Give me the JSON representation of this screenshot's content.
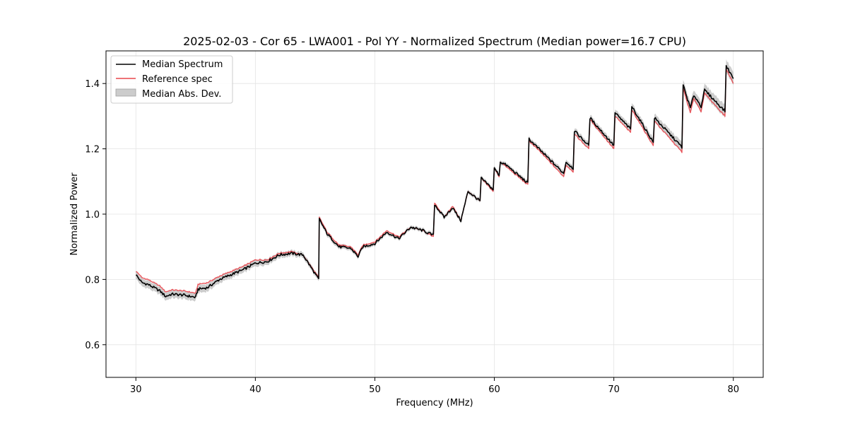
{
  "chart_data": {
    "type": "line",
    "title": "2025-02-03 - Cor 65 - LWA001 - Pol YY - Normalized Spectrum (Median power=16.7 CPU)",
    "xlabel": "Frequency (MHz)",
    "ylabel": "Normalized Power",
    "xlim": [
      27.5,
      82.5
    ],
    "ylim": [
      0.5,
      1.5
    ],
    "xticks": [
      30,
      40,
      50,
      60,
      70,
      80
    ],
    "yticks": [
      0.6,
      0.8,
      1.0,
      1.2,
      1.4
    ],
    "xtick_labels": [
      "30",
      "40",
      "50",
      "60",
      "70",
      "80"
    ],
    "ytick_labels": [
      "0.6",
      "0.8",
      "1.0",
      "1.2",
      "1.4"
    ],
    "grid": true,
    "legend_position": "top-left",
    "colors": {
      "median": "#000000",
      "reference": "#e8464c",
      "mad": "#b0b0b0"
    },
    "series": [
      {
        "name": "Median Spectrum",
        "x": [
          30.0,
          30.3,
          30.5,
          31.0,
          31.5,
          32.0,
          32.5,
          33.0,
          34.0,
          35.0,
          35.2,
          36.0,
          37.0,
          38.0,
          39.0,
          40.0,
          41.0,
          42.0,
          43.0,
          44.0,
          45.3,
          45.35,
          46.0,
          47.0,
          48.0,
          48.6,
          49.0,
          50.0,
          51.0,
          52.0,
          53.0,
          54.0,
          54.9,
          55.0,
          55.8,
          56.5,
          57.2,
          57.8,
          58.8,
          58.9,
          59.9,
          60.0,
          60.4,
          60.5,
          61.0,
          62.8,
          62.9,
          64.0,
          65.8,
          66.0,
          66.6,
          66.7,
          67.9,
          68.0,
          70.0,
          70.1,
          71.4,
          71.5,
          73.3,
          73.4,
          75.7,
          75.8,
          76.4,
          76.7,
          77.3,
          77.6,
          79.3,
          79.4,
          80.0
        ],
        "values": [
          0.815,
          0.8,
          0.79,
          0.785,
          0.775,
          0.765,
          0.748,
          0.755,
          0.752,
          0.745,
          0.77,
          0.775,
          0.8,
          0.815,
          0.83,
          0.85,
          0.855,
          0.875,
          0.88,
          0.875,
          0.8,
          0.985,
          0.94,
          0.9,
          0.895,
          0.87,
          0.9,
          0.91,
          0.945,
          0.925,
          0.96,
          0.95,
          0.935,
          1.03,
          0.99,
          1.02,
          0.98,
          1.07,
          1.04,
          1.11,
          1.075,
          1.14,
          1.12,
          1.16,
          1.15,
          1.095,
          1.23,
          1.19,
          1.125,
          1.16,
          1.14,
          1.255,
          1.21,
          1.295,
          1.21,
          1.31,
          1.26,
          1.33,
          1.22,
          1.295,
          1.205,
          1.395,
          1.325,
          1.365,
          1.33,
          1.38,
          1.315,
          1.455,
          1.415
        ]
      },
      {
        "name": "Reference spec",
        "x": [
          30.0,
          30.3,
          30.5,
          31.0,
          31.5,
          32.0,
          32.5,
          33.0,
          34.0,
          35.0,
          35.2,
          36.0,
          37.0,
          38.0,
          39.0,
          40.0,
          41.0,
          42.0,
          43.0,
          44.0,
          45.3,
          45.35,
          46.0,
          47.0,
          48.0,
          48.6,
          49.0,
          50.0,
          51.0,
          52.0,
          53.0,
          54.0,
          54.9,
          55.0,
          55.8,
          56.5,
          57.2,
          57.8,
          58.8,
          58.9,
          59.9,
          60.0,
          60.4,
          60.5,
          61.0,
          62.8,
          62.9,
          64.0,
          65.8,
          66.0,
          66.6,
          66.7,
          67.9,
          68.0,
          70.0,
          70.1,
          71.4,
          71.5,
          73.3,
          73.4,
          75.7,
          75.8,
          76.4,
          76.7,
          77.3,
          77.6,
          79.3,
          79.4,
          80.0
        ],
        "values": [
          0.825,
          0.815,
          0.805,
          0.8,
          0.79,
          0.78,
          0.762,
          0.768,
          0.765,
          0.758,
          0.785,
          0.79,
          0.81,
          0.825,
          0.84,
          0.86,
          0.86,
          0.88,
          0.885,
          0.875,
          0.805,
          0.99,
          0.945,
          0.905,
          0.9,
          0.875,
          0.905,
          0.915,
          0.95,
          0.93,
          0.96,
          0.95,
          0.93,
          1.035,
          0.99,
          1.025,
          0.98,
          1.07,
          1.04,
          1.11,
          1.07,
          1.14,
          1.115,
          1.16,
          1.145,
          1.09,
          1.225,
          1.185,
          1.115,
          1.15,
          1.13,
          1.245,
          1.2,
          1.29,
          1.2,
          1.3,
          1.25,
          1.32,
          1.21,
          1.285,
          1.19,
          1.385,
          1.31,
          1.355,
          1.315,
          1.37,
          1.3,
          1.445,
          1.4
        ]
      },
      {
        "name": "Median Abs. Dev.",
        "type": "band",
        "x": [
          30.0,
          35.0,
          40.0,
          45.0,
          50.0,
          55.0,
          60.0,
          65.0,
          70.0,
          75.0,
          80.0
        ],
        "halfwidth": [
          0.012,
          0.012,
          0.01,
          0.008,
          0.006,
          0.006,
          0.006,
          0.008,
          0.01,
          0.014,
          0.02
        ]
      }
    ]
  },
  "legend": {
    "median_label": "Median Spectrum",
    "reference_label": "Reference spec",
    "mad_label": "Median Abs. Dev."
  }
}
